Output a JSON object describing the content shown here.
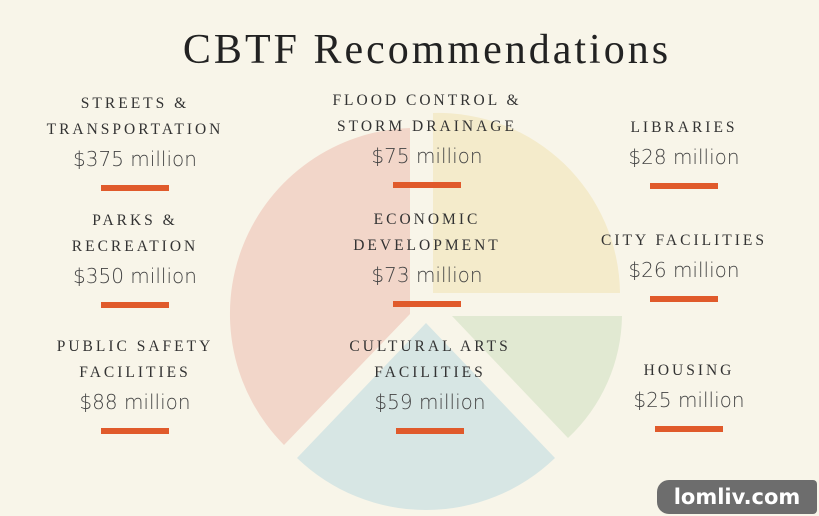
{
  "title": "CBTF Recommendations",
  "colors": {
    "accent": "#e05a2b",
    "background": "#f8f5e9"
  },
  "chart_data": {
    "type": "pie",
    "slices": [
      {
        "name": "streets-parks-safety",
        "color": "#f2d6c9"
      },
      {
        "name": "flood-econ-libraries-city",
        "color": "#f4ebcb"
      },
      {
        "name": "housing",
        "color": "#e1e9d2"
      },
      {
        "name": "cultural-arts",
        "color": "#d7e6e4"
      }
    ]
  },
  "items": [
    {
      "label": "STREETS &\nTRANSPORTATION",
      "amount": "$375 million"
    },
    {
      "label": "FLOOD CONTROL &\nSTORM DRAINAGE",
      "amount": "$75 million"
    },
    {
      "label": "LIBRARIES",
      "amount": "$28 million"
    },
    {
      "label": "PARKS &\nRECREATION",
      "amount": "$350 million"
    },
    {
      "label": "ECONOMIC\nDEVELOPMENT",
      "amount": "$73 million"
    },
    {
      "label": "CITY FACILITIES",
      "amount": "$26 million"
    },
    {
      "label": "PUBLIC SAFETY\nFACILITIES",
      "amount": "$88 million"
    },
    {
      "label": "CULTURAL ARTS\nFACILITIES",
      "amount": "$59 million"
    },
    {
      "label": "HOUSING",
      "amount": "$25 million"
    }
  ],
  "watermark": "lomliv.com"
}
